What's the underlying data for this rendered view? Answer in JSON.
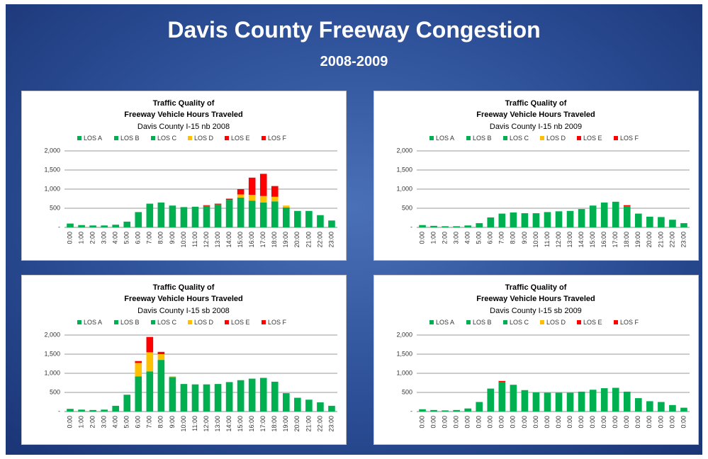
{
  "title": "Davis County Freeway Congestion",
  "subtitle": "2008-2009",
  "chart_data": [
    {
      "type": "bar",
      "stacked": true,
      "title": [
        "Traffic Quality of",
        "Freeway Vehicle Hours Traveled"
      ],
      "subtitle": "Davis County I-15 nb 2008",
      "categories": [
        "0:00",
        "1:00",
        "2:00",
        "3:00",
        "4:00",
        "5:00",
        "6:00",
        "7:00",
        "8:00",
        "9:00",
        "10:00",
        "11:00",
        "12:00",
        "13:00",
        "14:00",
        "15:00",
        "16:00",
        "17:00",
        "18:00",
        "19:00",
        "20:00",
        "21:00",
        "22:00",
        "23:00"
      ],
      "series": [
        {
          "name": "LOS A",
          "color": "#00b050",
          "values": [
            100,
            60,
            50,
            50,
            70,
            150,
            400,
            620,
            650,
            570,
            530,
            540,
            560,
            600,
            720,
            780,
            700,
            650,
            680,
            520,
            430,
            430,
            320,
            180
          ]
        },
        {
          "name": "LOS B",
          "color": "#00b050",
          "values": [
            0,
            0,
            0,
            0,
            0,
            0,
            0,
            0,
            0,
            0,
            0,
            0,
            0,
            0,
            0,
            0,
            0,
            0,
            0,
            0,
            0,
            0,
            0,
            0
          ]
        },
        {
          "name": "LOS C",
          "color": "#00b050",
          "values": [
            0,
            0,
            0,
            0,
            0,
            0,
            0,
            0,
            0,
            0,
            0,
            0,
            0,
            0,
            0,
            0,
            0,
            0,
            0,
            0,
            0,
            0,
            0,
            0
          ]
        },
        {
          "name": "LOS D",
          "color": "#ffc000",
          "values": [
            0,
            0,
            0,
            0,
            0,
            0,
            0,
            0,
            0,
            0,
            0,
            0,
            0,
            0,
            0,
            80,
            150,
            170,
            120,
            50,
            0,
            0,
            0,
            0
          ]
        },
        {
          "name": "LOS E",
          "color": "#ff0000",
          "values": [
            0,
            0,
            0,
            0,
            0,
            0,
            0,
            0,
            0,
            0,
            0,
            0,
            0,
            0,
            0,
            0,
            0,
            0,
            0,
            0,
            0,
            0,
            0,
            0
          ]
        },
        {
          "name": "LOS F",
          "color": "#ff0000",
          "values": [
            0,
            0,
            0,
            0,
            0,
            0,
            0,
            0,
            0,
            0,
            0,
            0,
            20,
            20,
            30,
            140,
            450,
            580,
            280,
            0,
            0,
            0,
            0,
            0
          ]
        }
      ],
      "ylim": [
        0,
        2000
      ],
      "yticks": [
        {
          "value": 0,
          "label": "-"
        },
        500,
        {
          "value": 1000,
          "label": "1,000"
        },
        {
          "value": 1500,
          "label": "1,500"
        },
        {
          "value": 2000,
          "label": "2,000"
        }
      ],
      "grid": true
    },
    {
      "type": "bar",
      "stacked": true,
      "title": [
        "Traffic Quality of",
        "Freeway Vehicle Hours Traveled"
      ],
      "subtitle": "Davis County I-15 nb 2009",
      "categories": [
        "0:00",
        "1:00",
        "2:00",
        "3:00",
        "4:00",
        "5:00",
        "6:00",
        "7:00",
        "8:00",
        "9:00",
        "10:00",
        "11:00",
        "12:00",
        "13:00",
        "14:00",
        "15:00",
        "16:00",
        "17:00",
        "18:00",
        "19:00",
        "20:00",
        "21:00",
        "22:00",
        "23:00"
      ],
      "series": [
        {
          "name": "LOS A",
          "color": "#00b050",
          "values": [
            60,
            40,
            30,
            30,
            50,
            110,
            260,
            360,
            390,
            370,
            370,
            400,
            420,
            430,
            480,
            570,
            650,
            670,
            550,
            360,
            280,
            270,
            200,
            110
          ]
        },
        {
          "name": "LOS B",
          "color": "#00b050",
          "values": [
            0,
            0,
            0,
            0,
            0,
            0,
            0,
            0,
            0,
            0,
            0,
            0,
            0,
            0,
            0,
            0,
            0,
            0,
            0,
            0,
            0,
            0,
            0,
            0
          ]
        },
        {
          "name": "LOS C",
          "color": "#00b050",
          "values": [
            0,
            0,
            0,
            0,
            0,
            0,
            0,
            0,
            0,
            0,
            0,
            0,
            0,
            0,
            0,
            0,
            0,
            0,
            0,
            0,
            0,
            0,
            0,
            0
          ]
        },
        {
          "name": "LOS D",
          "color": "#ffc000",
          "values": [
            0,
            0,
            0,
            0,
            0,
            0,
            0,
            0,
            0,
            0,
            0,
            0,
            0,
            0,
            0,
            0,
            0,
            0,
            0,
            0,
            0,
            0,
            0,
            0
          ]
        },
        {
          "name": "LOS E",
          "color": "#ff0000",
          "values": [
            0,
            0,
            0,
            0,
            0,
            0,
            0,
            0,
            0,
            0,
            0,
            0,
            0,
            0,
            0,
            0,
            0,
            0,
            0,
            0,
            0,
            0,
            0,
            0
          ]
        },
        {
          "name": "LOS F",
          "color": "#ff0000",
          "values": [
            0,
            0,
            0,
            0,
            0,
            0,
            0,
            0,
            0,
            0,
            0,
            0,
            0,
            0,
            0,
            0,
            0,
            0,
            30,
            0,
            0,
            0,
            0,
            0
          ]
        }
      ],
      "ylim": [
        0,
        2000
      ],
      "yticks": [
        {
          "value": 0,
          "label": "-"
        },
        500,
        {
          "value": 1000,
          "label": "1,000"
        },
        {
          "value": 1500,
          "label": "1,500"
        },
        {
          "value": 2000,
          "label": "2,000"
        }
      ],
      "grid": true
    },
    {
      "type": "bar",
      "stacked": true,
      "title": [
        "Traffic Quality of",
        "Freeway Vehicle Hours Traveled"
      ],
      "subtitle": "Davis County I-15 sb 2008",
      "categories": [
        "0:00",
        "1:00",
        "2:00",
        "3:00",
        "4:00",
        "5:00",
        "6:00",
        "7:00",
        "8:00",
        "9:00",
        "10:00",
        "11:00",
        "12:00",
        "13:00",
        "14:00",
        "15:00",
        "16:00",
        "17:00",
        "18:00",
        "19:00",
        "20:00",
        "21:00",
        "22:00",
        "23:00"
      ],
      "series": [
        {
          "name": "LOS A",
          "color": "#00b050",
          "values": [
            70,
            50,
            40,
            50,
            150,
            440,
            920,
            1050,
            1350,
            900,
            720,
            710,
            710,
            720,
            770,
            820,
            860,
            880,
            780,
            480,
            360,
            310,
            240,
            150
          ]
        },
        {
          "name": "LOS B",
          "color": "#00b050",
          "values": [
            0,
            0,
            0,
            0,
            0,
            0,
            0,
            0,
            0,
            0,
            0,
            0,
            0,
            0,
            0,
            0,
            0,
            0,
            0,
            0,
            0,
            0,
            0,
            0
          ]
        },
        {
          "name": "LOS C",
          "color": "#00b050",
          "values": [
            0,
            0,
            0,
            0,
            0,
            0,
            0,
            0,
            0,
            0,
            0,
            0,
            0,
            0,
            0,
            0,
            0,
            0,
            0,
            0,
            0,
            0,
            0,
            0
          ]
        },
        {
          "name": "LOS D",
          "color": "#ffc000",
          "values": [
            0,
            0,
            0,
            0,
            0,
            0,
            350,
            500,
            150,
            20,
            0,
            0,
            0,
            0,
            0,
            0,
            0,
            0,
            0,
            0,
            0,
            0,
            0,
            0
          ]
        },
        {
          "name": "LOS E",
          "color": "#ff0000",
          "values": [
            0,
            0,
            0,
            0,
            0,
            0,
            0,
            0,
            0,
            0,
            0,
            0,
            0,
            0,
            0,
            0,
            0,
            0,
            0,
            0,
            0,
            0,
            0,
            0
          ]
        },
        {
          "name": "LOS F",
          "color": "#ff0000",
          "values": [
            0,
            0,
            0,
            0,
            0,
            0,
            50,
            400,
            60,
            0,
            0,
            0,
            0,
            0,
            0,
            0,
            0,
            0,
            0,
            0,
            0,
            0,
            0,
            0
          ]
        }
      ],
      "ylim": [
        0,
        2000
      ],
      "yticks": [
        {
          "value": 0,
          "label": "-"
        },
        500,
        {
          "value": 1000,
          "label": "1,000"
        },
        {
          "value": 1500,
          "label": "1,500"
        },
        {
          "value": 2000,
          "label": "2,000"
        }
      ],
      "grid": true
    },
    {
      "type": "bar",
      "stacked": true,
      "title": [
        "Traffic Quality of",
        "Freeway Vehicle Hours Traveled"
      ],
      "subtitle": "Davis County I-15 sb 2009",
      "categories": [
        "0:00",
        "0:00",
        "0:00",
        "0:00",
        "0:00",
        "0:00",
        "0:00",
        "0:00",
        "0:00",
        "0:00",
        "0:00",
        "0:00",
        "0:00",
        "0:00",
        "0:00",
        "0:00",
        "0:00",
        "0:00",
        "0:00",
        "0:00",
        "0:00",
        "0:00",
        "0:00",
        "0:00"
      ],
      "series": [
        {
          "name": "LOS A",
          "color": "#00b050",
          "values": [
            60,
            40,
            30,
            40,
            80,
            250,
            600,
            770,
            700,
            560,
            500,
            490,
            490,
            490,
            520,
            570,
            610,
            620,
            520,
            350,
            270,
            250,
            170,
            100
          ]
        },
        {
          "name": "LOS B",
          "color": "#00b050",
          "values": [
            0,
            0,
            0,
            0,
            0,
            0,
            0,
            0,
            0,
            0,
            0,
            0,
            0,
            0,
            0,
            0,
            0,
            0,
            0,
            0,
            0,
            0,
            0,
            0
          ]
        },
        {
          "name": "LOS C",
          "color": "#00b050",
          "values": [
            0,
            0,
            0,
            0,
            0,
            0,
            0,
            0,
            0,
            0,
            0,
            0,
            0,
            0,
            0,
            0,
            0,
            0,
            0,
            0,
            0,
            0,
            0,
            0
          ]
        },
        {
          "name": "LOS D",
          "color": "#ffc000",
          "values": [
            0,
            0,
            0,
            0,
            0,
            0,
            0,
            0,
            0,
            0,
            0,
            0,
            0,
            0,
            0,
            0,
            0,
            0,
            0,
            0,
            0,
            0,
            0,
            0
          ]
        },
        {
          "name": "LOS E",
          "color": "#ff0000",
          "values": [
            0,
            0,
            0,
            0,
            0,
            0,
            0,
            0,
            0,
            0,
            0,
            0,
            0,
            0,
            0,
            0,
            0,
            0,
            0,
            0,
            0,
            0,
            0,
            0
          ]
        },
        {
          "name": "LOS F",
          "color": "#ff0000",
          "values": [
            0,
            0,
            0,
            0,
            0,
            0,
            0,
            30,
            0,
            0,
            0,
            0,
            0,
            0,
            0,
            0,
            0,
            0,
            0,
            0,
            0,
            0,
            0,
            0
          ]
        }
      ],
      "ylim": [
        0,
        2000
      ],
      "yticks": [
        {
          "value": 0,
          "label": "-"
        },
        500,
        {
          "value": 1000,
          "label": "1,000"
        },
        {
          "value": 1500,
          "label": "1,500"
        },
        {
          "value": 2000,
          "label": "2,000"
        }
      ],
      "grid": true
    }
  ]
}
